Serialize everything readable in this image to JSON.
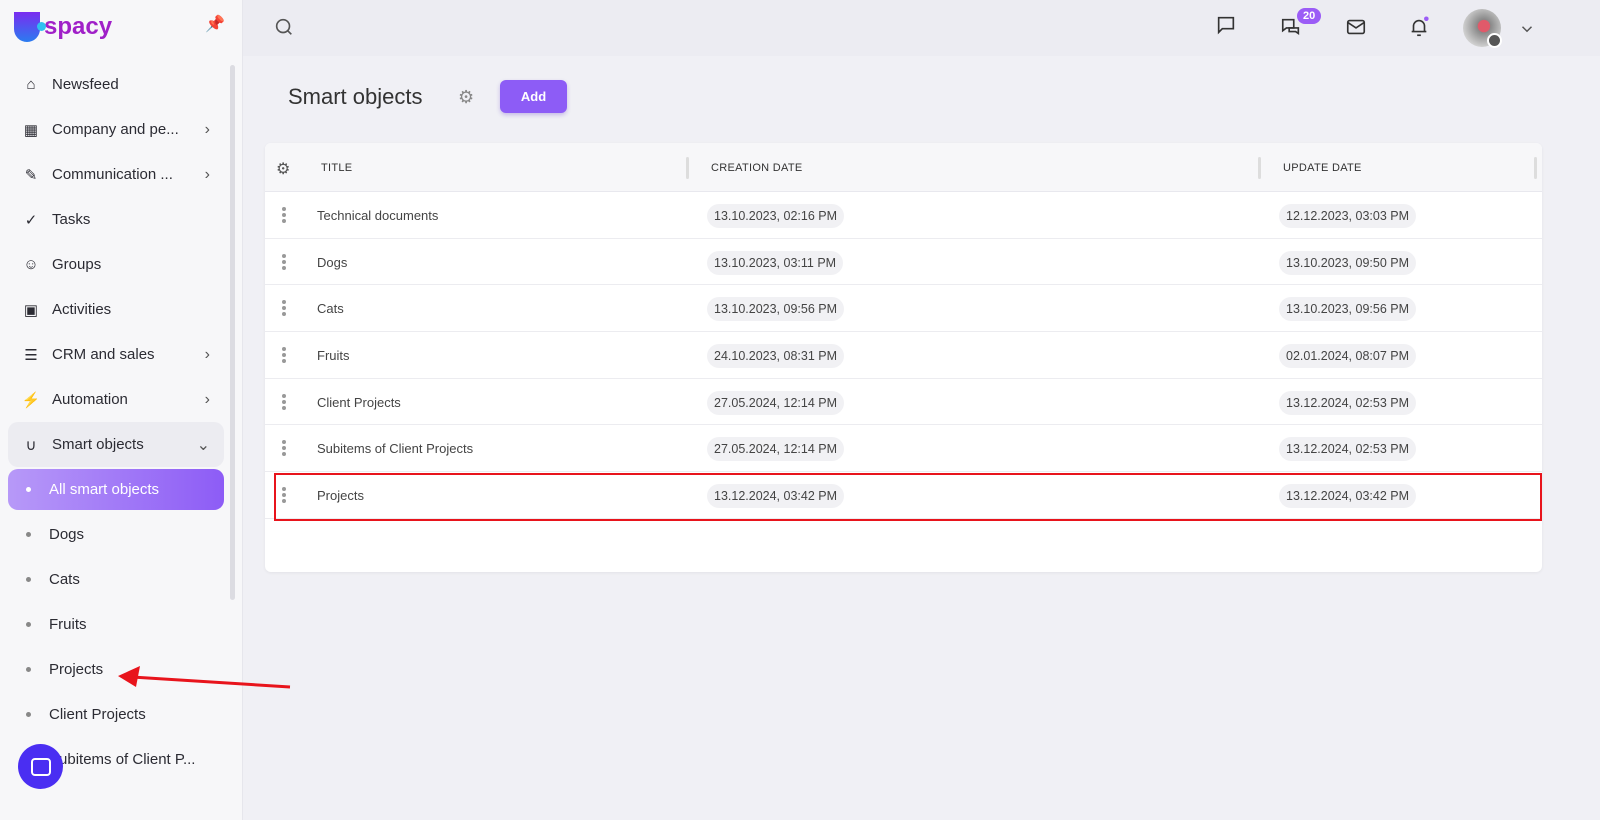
{
  "app": {
    "logo_text": "spacy",
    "brand_color": "#8d5cf6"
  },
  "sidebar": {
    "items": [
      {
        "label": "Newsfeed",
        "icon": "home-icon"
      },
      {
        "label": "Company and pe...",
        "icon": "building-icon",
        "chevron": true
      },
      {
        "label": "Communication ...",
        "icon": "chat-edit-icon",
        "chevron": true
      },
      {
        "label": "Tasks",
        "icon": "check-circle-icon"
      },
      {
        "label": "Groups",
        "icon": "users-icon"
      },
      {
        "label": "Activities",
        "icon": "calendar-icon"
      },
      {
        "label": "CRM and sales",
        "icon": "funnel-icon",
        "chevron": true
      },
      {
        "label": "Automation",
        "icon": "bolt-icon",
        "chevron": true
      },
      {
        "label": "Smart objects",
        "icon": "smart-object-icon",
        "expanded": true
      }
    ],
    "subitems": [
      "All smart objects",
      "Dogs",
      "Cats",
      "Fruits",
      "Projects",
      "Client Projects",
      "Subitems of Client P..."
    ],
    "active_subitem": "All smart objects"
  },
  "topbar": {
    "messages_badge": "20"
  },
  "page": {
    "title": "Smart objects",
    "add_label": "Add"
  },
  "table": {
    "columns": [
      "TITLE",
      "CREATION DATE",
      "UPDATE DATE"
    ],
    "rows": [
      {
        "title": "Technical documents",
        "created": "13.10.2023, 02:16 PM",
        "updated": "12.12.2023, 03:03 PM"
      },
      {
        "title": "Dogs",
        "created": "13.10.2023, 03:11 PM",
        "updated": "13.10.2023, 09:50 PM"
      },
      {
        "title": "Cats",
        "created": "13.10.2023, 09:56 PM",
        "updated": "13.10.2023, 09:56 PM"
      },
      {
        "title": "Fruits",
        "created": "24.10.2023, 08:31 PM",
        "updated": "02.01.2024, 08:07 PM"
      },
      {
        "title": "Client Projects",
        "created": "27.05.2024, 12:14 PM",
        "updated": "13.12.2024, 02:53 PM"
      },
      {
        "title": "Subitems of Client Projects",
        "created": "27.05.2024, 12:14 PM",
        "updated": "13.12.2024, 02:53 PM"
      },
      {
        "title": "Projects",
        "created": "13.12.2024, 03:42 PM",
        "updated": "13.12.2024, 03:42 PM"
      }
    ],
    "highlighted_row": "Projects"
  }
}
